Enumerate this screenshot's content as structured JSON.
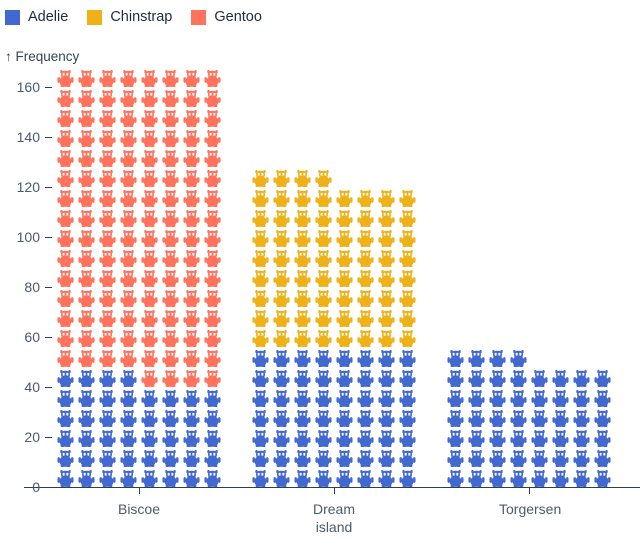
{
  "legend": {
    "items": [
      {
        "label": "Adelie",
        "color": "#4269d0"
      },
      {
        "label": "Chinstrap",
        "color": "#efb118"
      },
      {
        "label": "Gentoo",
        "color": "#ff725c"
      }
    ]
  },
  "axis": {
    "y_title": "↑ Frequency"
  },
  "chart_data": {
    "type": "pictogram",
    "icon": "penguin",
    "title": "",
    "xlabel": "",
    "ylabel": "Frequency",
    "categories": [
      "Biscoe",
      "Dream island",
      "Torgersen"
    ],
    "series": [
      {
        "name": "Adelie",
        "color": "#4269d0",
        "values": [
          44,
          56,
          52
        ]
      },
      {
        "name": "Chinstrap",
        "color": "#efb118",
        "values": [
          0,
          68,
          0
        ]
      },
      {
        "name": "Gentoo",
        "color": "#ff725c",
        "values": [
          124,
          0,
          0
        ]
      }
    ],
    "totals": [
      168,
      124,
      52
    ],
    "icons_per_row": 8,
    "unit_per_icon": 1,
    "stack_order_bottom_to_top": [
      "Adelie",
      "Chinstrap",
      "Gentoo"
    ],
    "yticks": [
      0,
      20,
      40,
      60,
      80,
      100,
      120,
      140,
      160
    ],
    "ylim": [
      0,
      168
    ],
    "legend_position": "top-left",
    "grid": false
  }
}
